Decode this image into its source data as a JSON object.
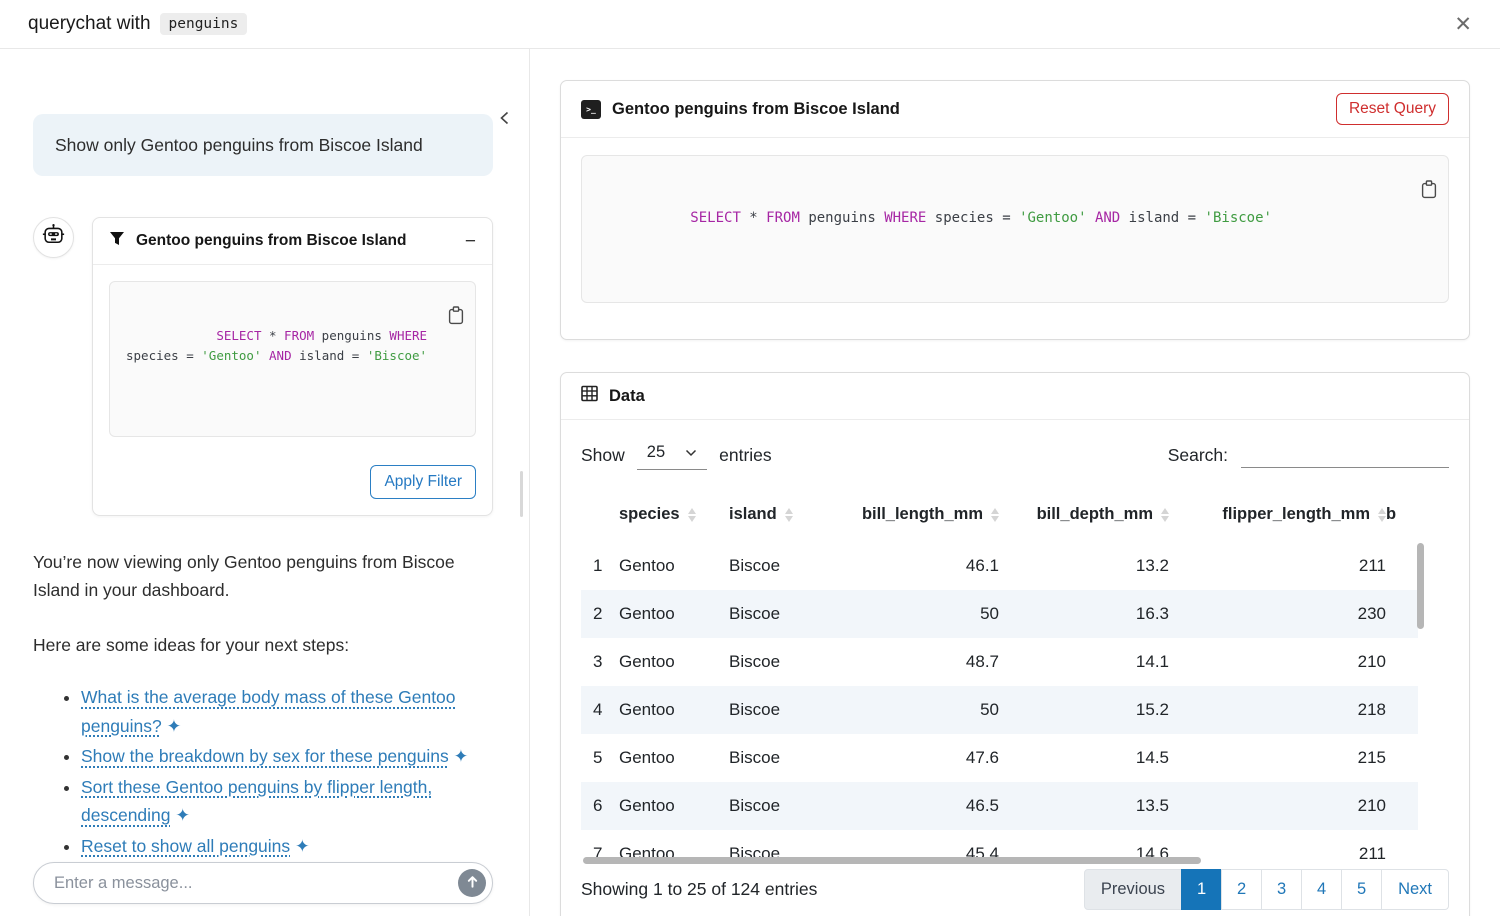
{
  "titlebar": {
    "title_prefix": "querychat with",
    "dataset_name": "penguins",
    "close_glyph": "✕"
  },
  "sql": {
    "text": "SELECT * FROM penguins WHERE species = 'Gentoo' AND island = 'Biscoe'",
    "tokens": [
      {
        "t": "SELECT",
        "c": "kw"
      },
      {
        "t": " * ",
        "c": "pl"
      },
      {
        "t": "FROM",
        "c": "kw"
      },
      {
        "t": " penguins ",
        "c": "pl"
      },
      {
        "t": "WHERE",
        "c": "kw"
      },
      {
        "t": " species = ",
        "c": "pl"
      },
      {
        "t": "'Gentoo'",
        "c": "str"
      },
      {
        "t": " ",
        "c": "pl"
      },
      {
        "t": "AND",
        "c": "kw"
      },
      {
        "t": " island = ",
        "c": "pl"
      },
      {
        "t": "'Biscoe'",
        "c": "str"
      }
    ]
  },
  "sidebar": {
    "user_message": "Show only Gentoo penguins from Biscoe Island",
    "filter_card": {
      "title": "Gentoo penguins from Biscoe Island",
      "collapse_glyph": "−",
      "apply_label": "Apply Filter"
    },
    "assistant": {
      "paragraph1": "You’re now viewing only Gentoo penguins from Biscoe Island in your dashboard.",
      "paragraph2": "Here are some ideas for your next steps:",
      "suggestions": [
        "What is the average body mass of these Gentoo penguins?",
        "Show the breakdown by sex for these penguins",
        "Sort these Gentoo penguins by flipper length, descending",
        "Reset to show all penguins"
      ],
      "sparkle": "✦"
    },
    "input_placeholder": "Enter a message..."
  },
  "main": {
    "query_card": {
      "title": "Gentoo penguins from Biscoe Island",
      "reset_label": "Reset Query"
    },
    "data_card": {
      "title": "Data",
      "show_label": "Show",
      "page_length": "25",
      "entries_label": "entries",
      "search_label": "Search:",
      "search_value": "",
      "columns": [
        {
          "label": "",
          "align": "left",
          "sortable": false
        },
        {
          "label": "species",
          "align": "left",
          "sortable": true
        },
        {
          "label": "island",
          "align": "left",
          "sortable": true
        },
        {
          "label": "bill_length_mm",
          "align": "right",
          "sortable": true
        },
        {
          "label": "bill_depth_mm",
          "align": "right",
          "sortable": true
        },
        {
          "label": "flipper_length_mm",
          "align": "right",
          "sortable": true
        },
        {
          "label": "b",
          "align": "left",
          "sortable": false
        }
      ],
      "rows": [
        [
          "1",
          "Gentoo",
          "Biscoe",
          "46.1",
          "13.2",
          "211",
          ""
        ],
        [
          "2",
          "Gentoo",
          "Biscoe",
          "50",
          "16.3",
          "230",
          ""
        ],
        [
          "3",
          "Gentoo",
          "Biscoe",
          "48.7",
          "14.1",
          "210",
          ""
        ],
        [
          "4",
          "Gentoo",
          "Biscoe",
          "50",
          "15.2",
          "218",
          ""
        ],
        [
          "5",
          "Gentoo",
          "Biscoe",
          "47.6",
          "14.5",
          "215",
          ""
        ],
        [
          "6",
          "Gentoo",
          "Biscoe",
          "46.5",
          "13.5",
          "210",
          ""
        ],
        [
          "7",
          "Gentoo",
          "Biscoe",
          "45.4",
          "14.6",
          "211",
          ""
        ]
      ],
      "info": "Showing 1 to 25 of 124 entries",
      "pagination": [
        {
          "label": "Previous",
          "type": "prev",
          "active": false
        },
        {
          "label": "1",
          "type": "page",
          "active": true
        },
        {
          "label": "2",
          "type": "page",
          "active": false
        },
        {
          "label": "3",
          "type": "page",
          "active": false
        },
        {
          "label": "4",
          "type": "page",
          "active": false
        },
        {
          "label": "5",
          "type": "page",
          "active": false
        },
        {
          "label": "Next",
          "type": "next",
          "active": false
        }
      ]
    }
  },
  "colors": {
    "accent_blue": "#1574b8",
    "link_blue": "#2e7cb8",
    "danger_red": "#cf2e2e",
    "sql_keyword": "#a626a4",
    "sql_string": "#3f9b41",
    "user_bubble_bg": "#ecf3f8",
    "row_stripe_bg": "#f2f6fa"
  }
}
